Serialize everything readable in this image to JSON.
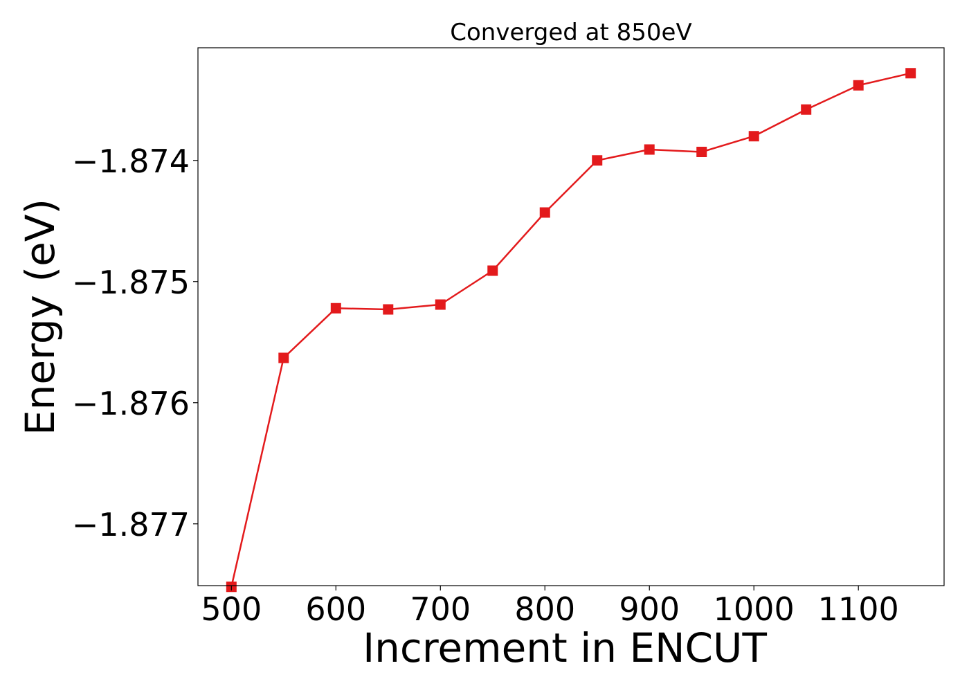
{
  "chart_data": {
    "type": "line",
    "title": "Converged at 850eV",
    "xlabel": "Increment in ENCUT",
    "ylabel": "Energy (eV)",
    "xlim": [
      468,
      1182
    ],
    "ylim": [
      -1.87751,
      -1.87307
    ],
    "xticks": [
      500,
      600,
      700,
      800,
      900,
      1000,
      1100
    ],
    "yticks": [
      -1.874,
      -1.875,
      -1.876,
      -1.877
    ],
    "ytick_labels": [
      "−1.874",
      "−1.875",
      "−1.876",
      "−1.877"
    ],
    "grid": false,
    "series": [
      {
        "color": "#e31a1c",
        "marker": "square",
        "x": [
          500,
          550,
          600,
          650,
          700,
          750,
          800,
          850,
          900,
          950,
          1000,
          1050,
          1100,
          1150
        ],
        "y": [
          -1.87752,
          -1.87563,
          -1.87522,
          -1.87523,
          -1.87519,
          -1.87491,
          -1.87443,
          -1.874,
          -1.87391,
          -1.87393,
          -1.8738,
          -1.87358,
          -1.87338,
          -1.87328
        ]
      }
    ]
  }
}
